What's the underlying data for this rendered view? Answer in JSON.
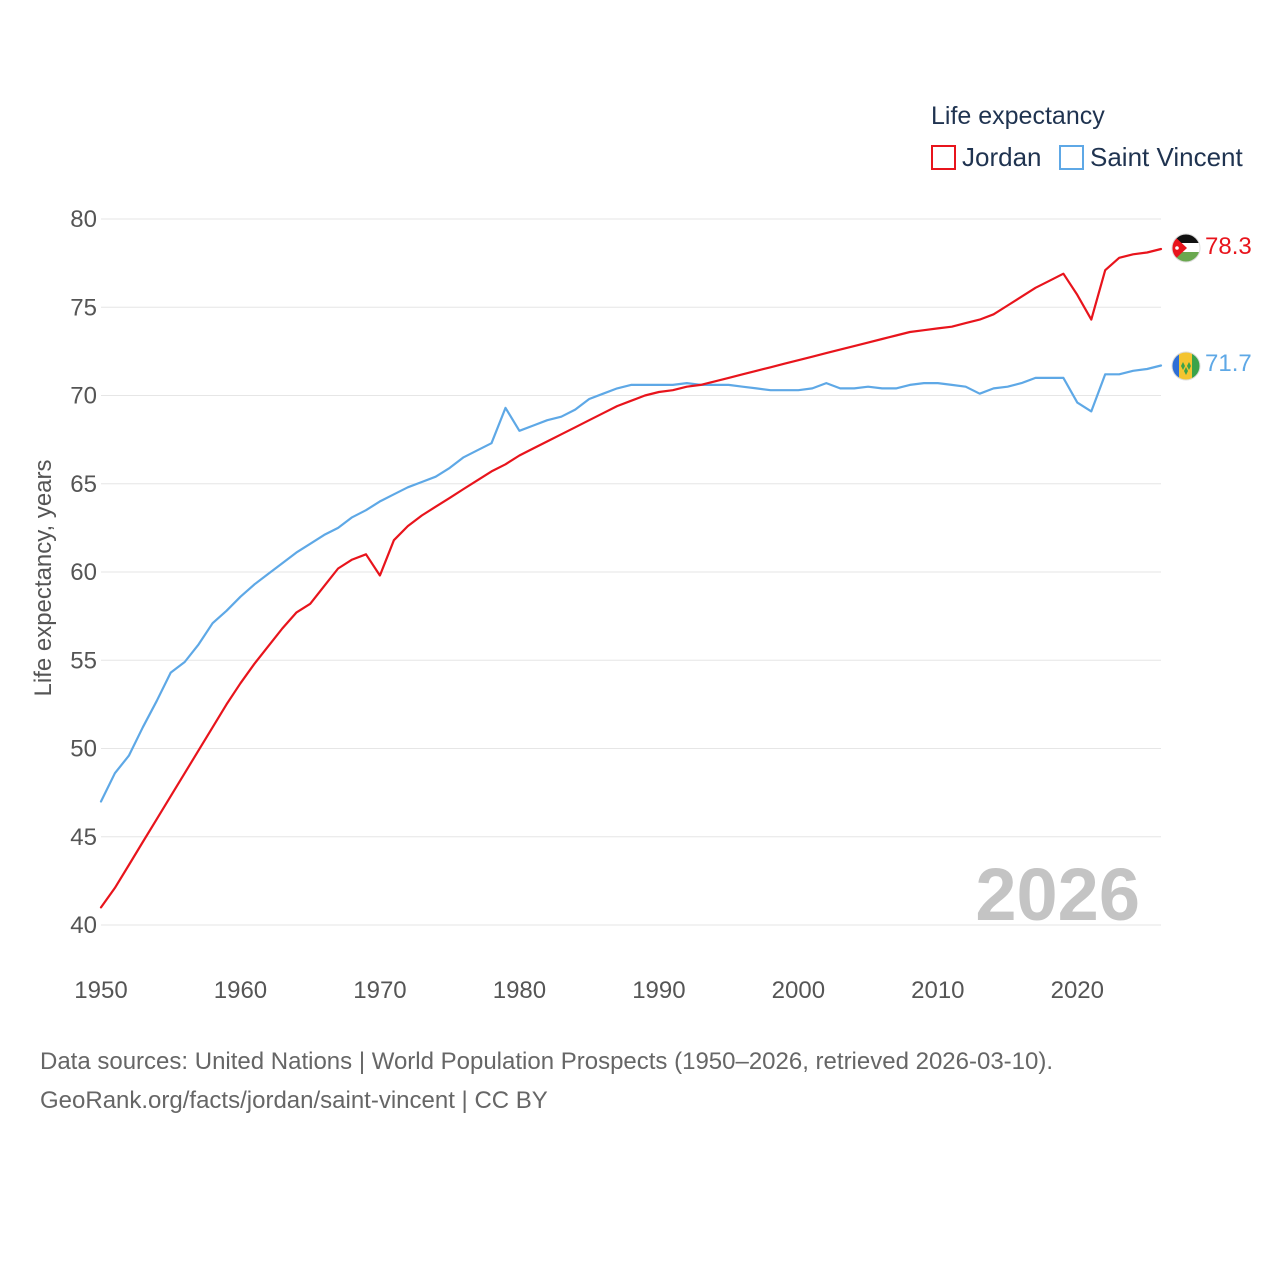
{
  "chart_data": {
    "type": "line",
    "legend_title": "Life expectancy",
    "ylabel": "Life expectancy, years",
    "xlim": [
      1950,
      2026
    ],
    "ylim": [
      40,
      80
    ],
    "x_ticks": [
      1950,
      1960,
      1970,
      1980,
      1990,
      2000,
      2010,
      2020
    ],
    "y_ticks": [
      40,
      45,
      50,
      55,
      60,
      65,
      70,
      75,
      80
    ],
    "year_marker": "2026",
    "x": [
      1950,
      1951,
      1952,
      1953,
      1954,
      1955,
      1956,
      1957,
      1958,
      1959,
      1960,
      1961,
      1962,
      1963,
      1964,
      1965,
      1966,
      1967,
      1968,
      1969,
      1970,
      1971,
      1972,
      1973,
      1974,
      1975,
      1976,
      1977,
      1978,
      1979,
      1980,
      1981,
      1982,
      1983,
      1984,
      1985,
      1986,
      1987,
      1988,
      1989,
      1990,
      1991,
      1992,
      1993,
      1994,
      1995,
      1996,
      1997,
      1998,
      1999,
      2000,
      2001,
      2002,
      2003,
      2004,
      2005,
      2006,
      2007,
      2008,
      2009,
      2010,
      2011,
      2012,
      2013,
      2014,
      2015,
      2016,
      2017,
      2018,
      2019,
      2020,
      2021,
      2022,
      2023,
      2024,
      2025,
      2026
    ],
    "series": [
      {
        "name": "Jordan",
        "color": "#e8141c",
        "end_label": "78.3",
        "values": [
          41.0,
          42.1,
          43.4,
          44.7,
          46.0,
          47.3,
          48.6,
          49.9,
          51.2,
          52.5,
          53.7,
          54.8,
          55.8,
          56.8,
          57.7,
          58.2,
          59.2,
          60.2,
          60.7,
          61.0,
          59.8,
          61.8,
          62.6,
          63.2,
          63.7,
          64.2,
          64.7,
          65.2,
          65.7,
          66.1,
          66.6,
          67.0,
          67.4,
          67.8,
          68.2,
          68.6,
          69.0,
          69.4,
          69.7,
          70.0,
          70.2,
          70.3,
          70.5,
          70.6,
          70.8,
          71.0,
          71.2,
          71.4,
          71.6,
          71.8,
          72.0,
          72.2,
          72.4,
          72.6,
          72.8,
          73.0,
          73.2,
          73.4,
          73.6,
          73.7,
          73.8,
          73.9,
          74.1,
          74.3,
          74.6,
          75.1,
          75.6,
          76.1,
          76.5,
          76.9,
          75.7,
          74.3,
          77.1,
          77.8,
          78.0,
          78.1,
          78.3
        ]
      },
      {
        "name": "Saint Vincent",
        "color": "#5ea8e6",
        "end_label": "71.7",
        "values": [
          47.0,
          48.6,
          49.6,
          51.2,
          52.7,
          54.3,
          54.9,
          55.9,
          57.1,
          57.8,
          58.6,
          59.3,
          59.9,
          60.5,
          61.1,
          61.6,
          62.1,
          62.5,
          63.1,
          63.5,
          64.0,
          64.4,
          64.8,
          65.1,
          65.4,
          65.9,
          66.5,
          66.9,
          67.3,
          69.3,
          68.0,
          68.3,
          68.6,
          68.8,
          69.2,
          69.8,
          70.1,
          70.4,
          70.6,
          70.6,
          70.6,
          70.6,
          70.7,
          70.6,
          70.6,
          70.6,
          70.5,
          70.4,
          70.3,
          70.3,
          70.3,
          70.4,
          70.7,
          70.4,
          70.4,
          70.5,
          70.4,
          70.4,
          70.6,
          70.7,
          70.7,
          70.6,
          70.5,
          70.1,
          70.4,
          70.5,
          70.7,
          71.0,
          71.0,
          71.0,
          69.6,
          69.1,
          71.2,
          71.2,
          71.4,
          71.5,
          71.7
        ]
      }
    ]
  },
  "footer": {
    "line1": "Data sources: United Nations | World Population Prospects (1950–2026, retrieved 2026-03-10).",
    "line2": "GeoRank.org/facts/jordan/saint-vincent | CC BY"
  }
}
